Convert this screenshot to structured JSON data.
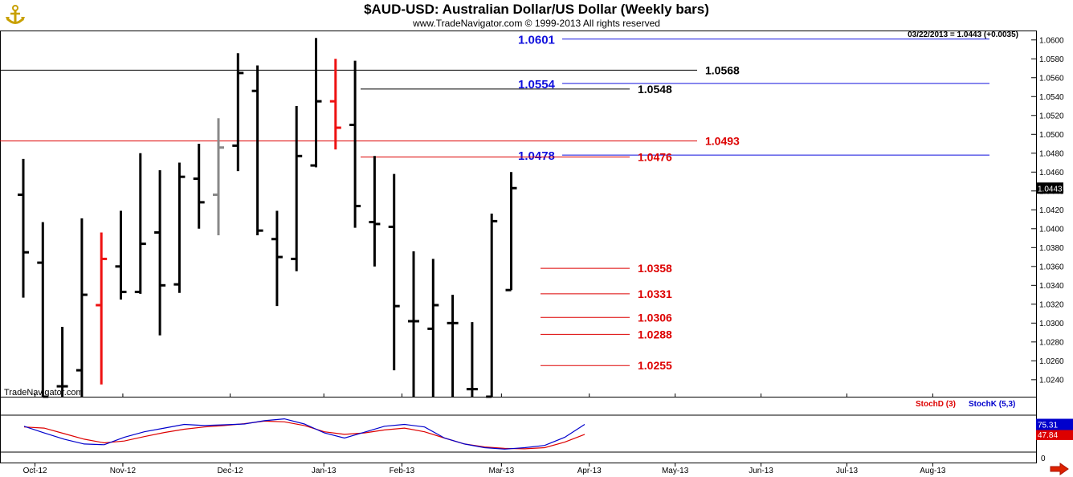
{
  "header": {
    "title": "$AUD-USD:  Australian Dollar/US Dollar  (Weekly bars)",
    "subtitle": "www.TradeNavigator.com © 1999-2013 All rights reserved",
    "quote_line": "03/22/2013 = 1.0443 (+0.0035)",
    "watermark": "TradeNavigator.com",
    "logo_icon": "anchor-logo-icon"
  },
  "chart_data": [
    {
      "type": "ohlc",
      "title": "$AUD-USD:  Australian Dollar/US Dollar  (Weekly bars)",
      "xlabel": "",
      "ylabel": "",
      "x_ticks": [
        "Oct-12",
        "Nov-12",
        "Dec-12",
        "Jan-13",
        "Feb-13",
        "Mar-13",
        "Apr-13",
        "May-13",
        "Jun-13",
        "Jul-13",
        "Aug-13"
      ],
      "y_ticks": [
        "1.0240",
        "1.0260",
        "1.0280",
        "1.0300",
        "1.0320",
        "1.0340",
        "1.0360",
        "1.0380",
        "1.0400",
        "1.0420",
        "1.0440",
        "1.0460",
        "1.0480",
        "1.0500",
        "1.0520",
        "1.0540",
        "1.0560",
        "1.0580",
        "1.0600"
      ],
      "ylim": [
        1.0222,
        1.061
      ],
      "grid": false,
      "last_price_label": "1.0443",
      "bar_colors": {
        "normal": "#000000",
        "highlight_red": "#ee1111",
        "highlight_gray": "#888888"
      },
      "bars": [
        {
          "o": 1.0436,
          "h": 1.0474,
          "l": 1.0327,
          "c": 1.0375,
          "color": "black"
        },
        {
          "o": 1.0364,
          "h": 1.0407,
          "l": 1.0222,
          "c": 1.0222,
          "color": "black"
        },
        {
          "o": 1.0233,
          "h": 1.0296,
          "l": 1.0222,
          "c": 1.0233,
          "color": "black"
        },
        {
          "o": 1.025,
          "h": 1.0411,
          "l": 1.0222,
          "c": 1.033,
          "color": "black"
        },
        {
          "o": 1.0319,
          "h": 1.0396,
          "l": 1.0235,
          "c": 1.0368,
          "color": "red"
        },
        {
          "o": 1.036,
          "h": 1.0419,
          "l": 1.0325,
          "c": 1.0333,
          "color": "black"
        },
        {
          "o": 1.0333,
          "h": 1.048,
          "l": 1.0331,
          "c": 1.0384,
          "color": "black"
        },
        {
          "o": 1.0396,
          "h": 1.0462,
          "l": 1.0287,
          "c": 1.034,
          "color": "black"
        },
        {
          "o": 1.0341,
          "h": 1.047,
          "l": 1.0332,
          "c": 1.0455,
          "color": "black"
        },
        {
          "o": 1.0453,
          "h": 1.049,
          "l": 1.04,
          "c": 1.0428,
          "color": "black"
        },
        {
          "o": 1.0436,
          "h": 1.0517,
          "l": 1.0393,
          "c": 1.0486,
          "color": "gray"
        },
        {
          "o": 1.0488,
          "h": 1.0586,
          "l": 1.0461,
          "c": 1.0565,
          "color": "black"
        },
        {
          "o": 1.0546,
          "h": 1.0573,
          "l": 1.0393,
          "c": 1.0398,
          "color": "black"
        },
        {
          "o": 1.0389,
          "h": 1.0419,
          "l": 1.0318,
          "c": 1.037,
          "color": "black"
        },
        {
          "o": 1.0368,
          "h": 1.053,
          "l": 1.0355,
          "c": 1.0477,
          "color": "black"
        },
        {
          "o": 1.0467,
          "h": 1.0602,
          "l": 1.0465,
          "c": 1.0535,
          "color": "black"
        },
        {
          "o": 1.0535,
          "h": 1.058,
          "l": 1.0484,
          "c": 1.0507,
          "color": "red"
        },
        {
          "o": 1.051,
          "h": 1.0578,
          "l": 1.0401,
          "c": 1.0424,
          "color": "black"
        },
        {
          "o": 1.0407,
          "h": 1.0477,
          "l": 1.036,
          "c": 1.0405,
          "color": "black"
        },
        {
          "o": 1.0402,
          "h": 1.0458,
          "l": 1.025,
          "c": 1.0318,
          "color": "black"
        },
        {
          "o": 1.0302,
          "h": 1.0376,
          "l": 1.0222,
          "c": 1.0302,
          "color": "black"
        },
        {
          "o": 1.0294,
          "h": 1.0368,
          "l": 1.0222,
          "c": 1.0319,
          "color": "black"
        },
        {
          "o": 1.03,
          "h": 1.033,
          "l": 1.0222,
          "c": 1.03,
          "color": "black"
        },
        {
          "o": 1.023,
          "h": 1.0301,
          "l": 1.0222,
          "c": 1.023,
          "color": "black"
        },
        {
          "o": 1.0222,
          "h": 1.0416,
          "l": 1.0222,
          "c": 1.0408,
          "color": "black"
        },
        {
          "o": 1.0335,
          "h": 1.046,
          "l": 1.0335,
          "c": 1.0443,
          "color": "black"
        }
      ],
      "levels": [
        {
          "value": 1.0601,
          "label": "1.0601",
          "color": "blue"
        },
        {
          "value": 1.0568,
          "label": "1.0568",
          "color": "black"
        },
        {
          "value": 1.0554,
          "label": "1.0554",
          "color": "blue"
        },
        {
          "value": 1.0548,
          "label": "1.0548",
          "color": "black"
        },
        {
          "value": 1.0493,
          "label": "1.0493",
          "color": "red"
        },
        {
          "value": 1.0478,
          "label": "1.0478",
          "color": "blue"
        },
        {
          "value": 1.0476,
          "label": "1.0476",
          "color": "red"
        },
        {
          "value": 1.0358,
          "label": "1.0358",
          "color": "red"
        },
        {
          "value": 1.0331,
          "label": "1.0331",
          "color": "red"
        },
        {
          "value": 1.0306,
          "label": "1.0306",
          "color": "red"
        },
        {
          "value": 1.0288,
          "label": "1.0288",
          "color": "red"
        },
        {
          "value": 1.0255,
          "label": "1.0255",
          "color": "red"
        }
      ]
    },
    {
      "type": "line",
      "title": "",
      "ylim": [
        0,
        100
      ],
      "y_ticks": [
        "0"
      ],
      "legend": [
        "StochD (3)",
        "StochK (5,3)"
      ],
      "legend_position": "top-right",
      "series": [
        {
          "name": "StochD (3)",
          "color": "#dd0000",
          "last_label": "47.84",
          "values": [
            68,
            65,
            50,
            35,
            25,
            30,
            42,
            53,
            62,
            68,
            72,
            77,
            84,
            82,
            72,
            55,
            48,
            52,
            60,
            65,
            55,
            38,
            22,
            14,
            10,
            9,
            12,
            27,
            48
          ]
        },
        {
          "name": "StochK (5,3)",
          "color": "#0000cc",
          "last_label": "75.31",
          "values": [
            70,
            52,
            35,
            22,
            20,
            40,
            55,
            65,
            75,
            72,
            74,
            76,
            85,
            90,
            76,
            52,
            38,
            54,
            70,
            75,
            68,
            38,
            22,
            12,
            8,
            12,
            18,
            40,
            75
          ]
        }
      ]
    }
  ]
}
